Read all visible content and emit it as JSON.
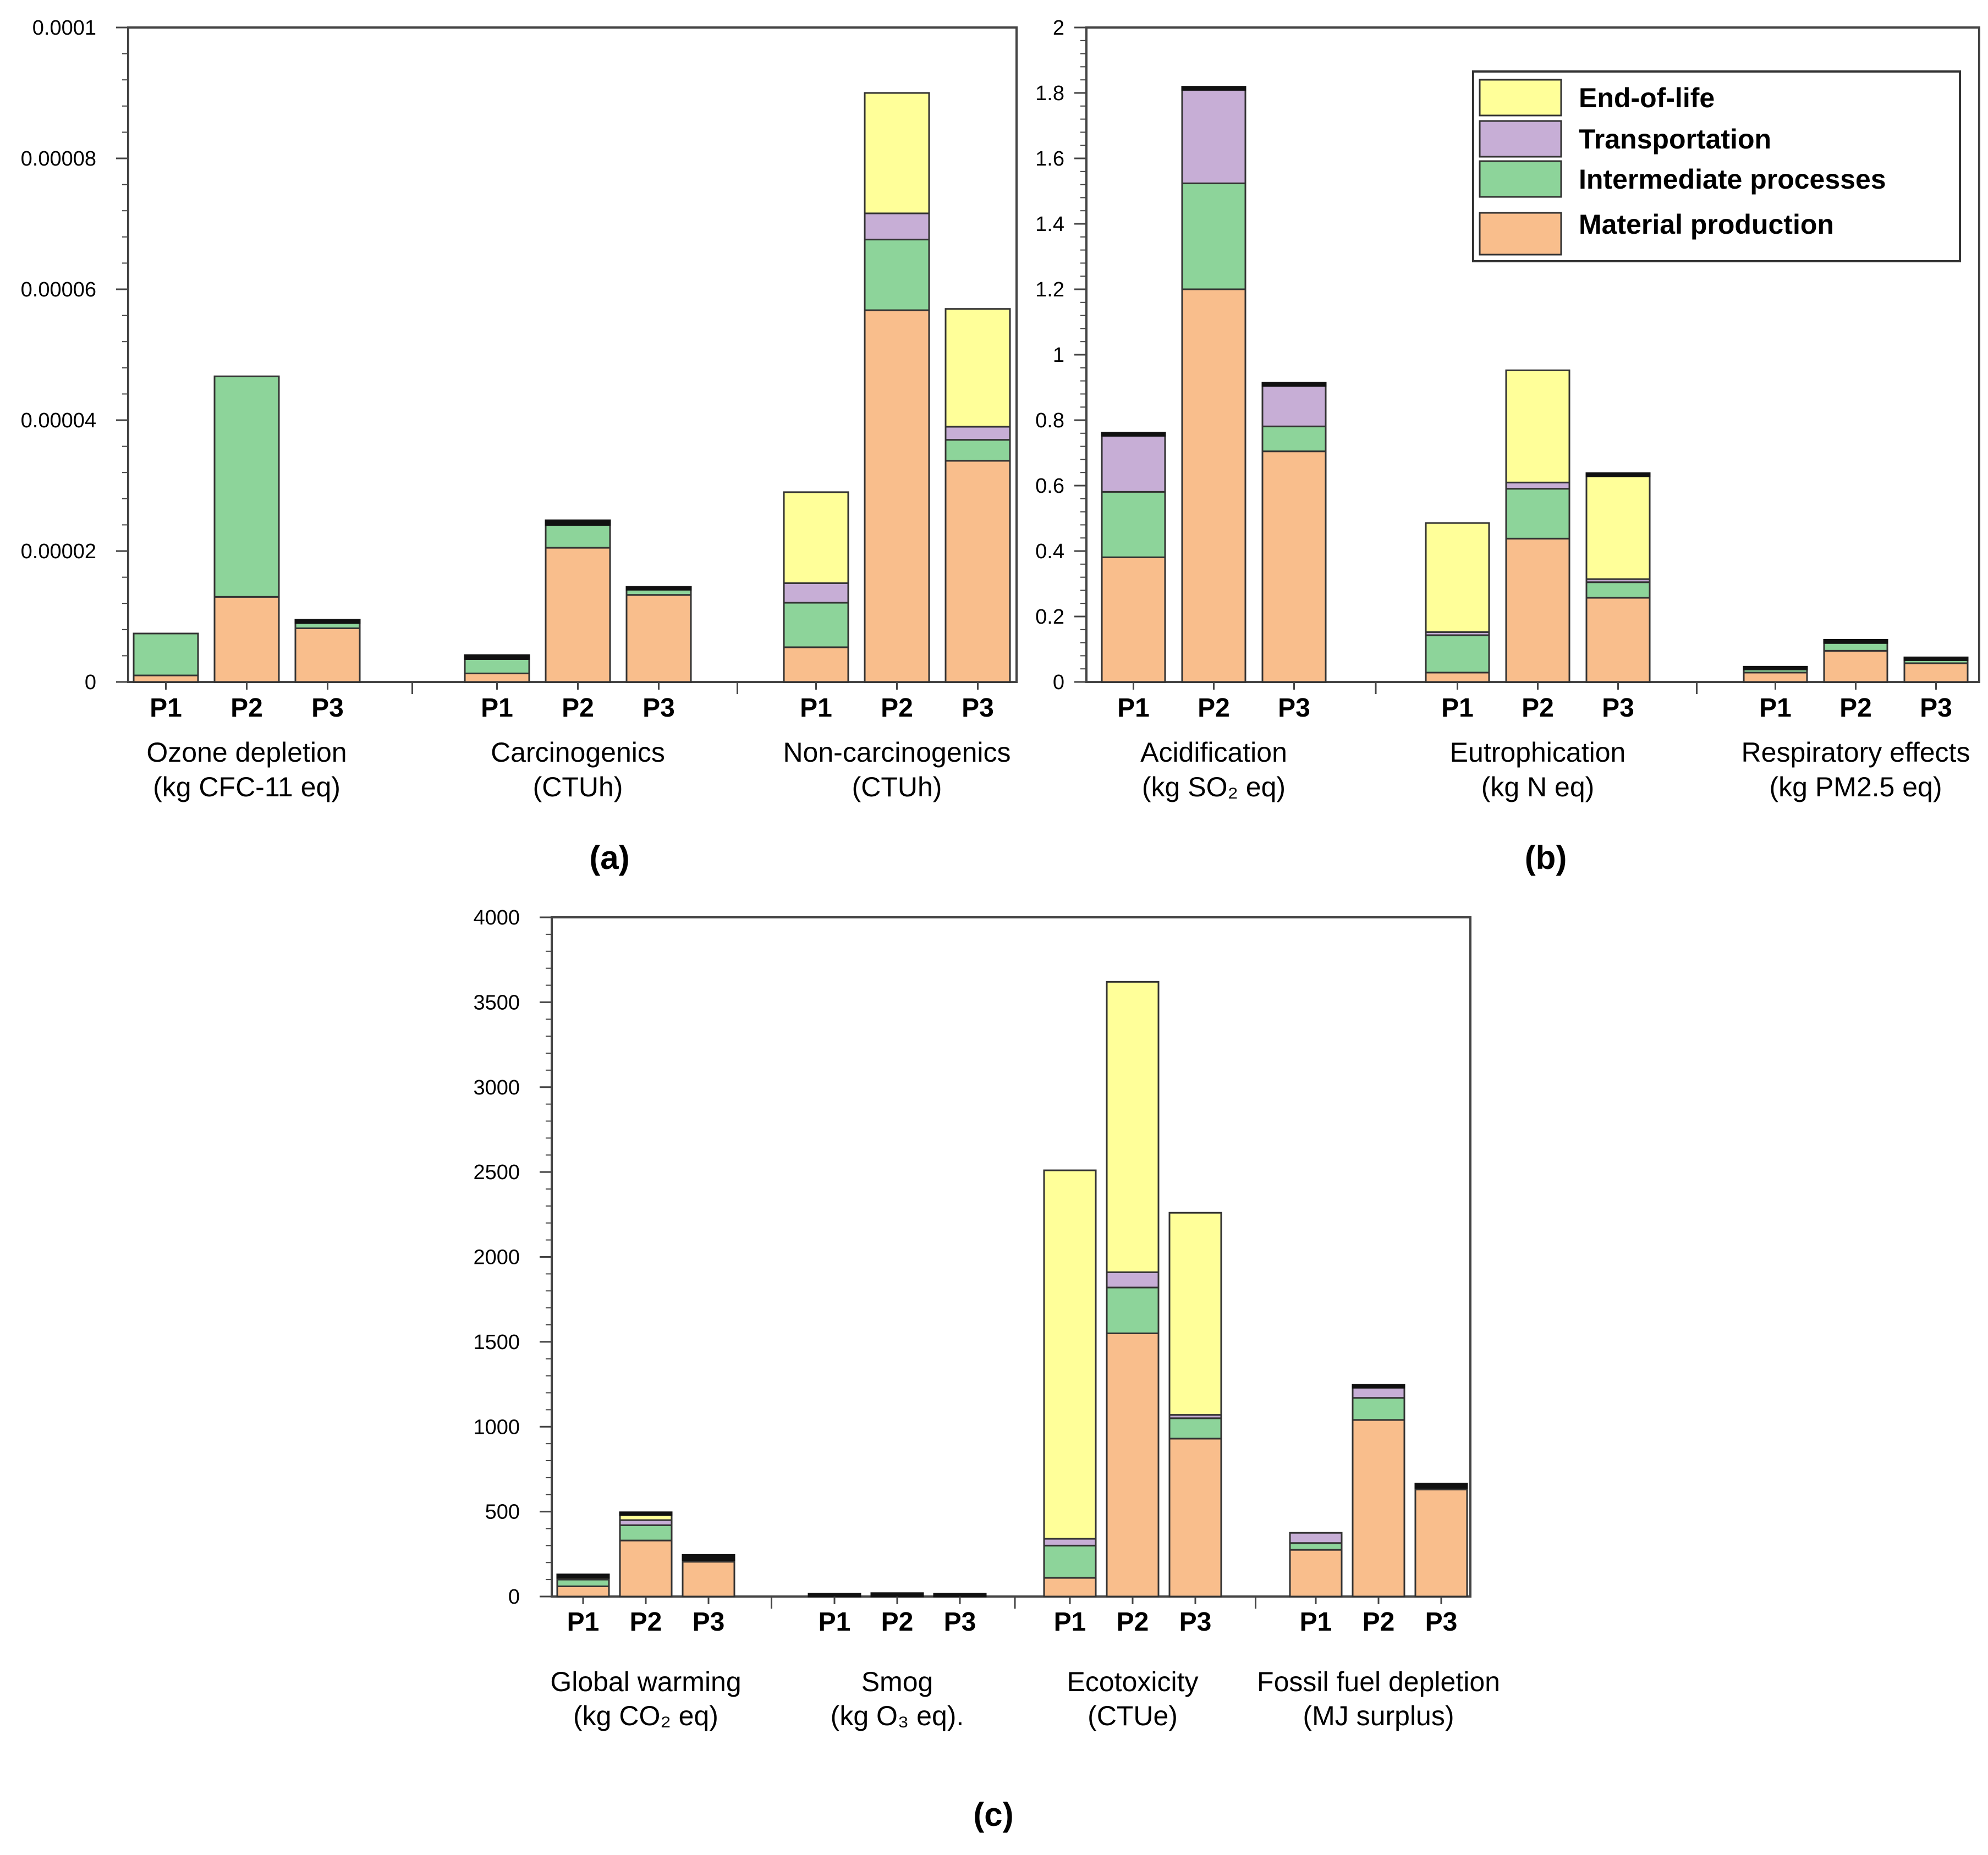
{
  "legend": {
    "items": [
      {
        "label": "End-of-life",
        "color": "#ffff99"
      },
      {
        "label": "Transportation",
        "color": "#c7aed6"
      },
      {
        "label": "Intermediate processes",
        "color": "#8dd49a"
      },
      {
        "label": "Material production",
        "color": "#f9be8c"
      }
    ]
  },
  "stage_keys": [
    "material_production",
    "intermediate_processes",
    "transportation",
    "end_of_life"
  ],
  "colors": {
    "material_production": "#f9be8c",
    "intermediate_processes": "#8dd49a",
    "transportation": "#c7aed6",
    "end_of_life": "#ffff99",
    "other": "#111111"
  },
  "chart_data": [
    {
      "panel": "(a)",
      "type": "bar",
      "stacked": true,
      "ylim": [
        0,
        0.0001
      ],
      "yticks": [
        "0",
        "0.00002",
        "0.00004",
        "0.00006",
        "0.00008",
        "0.0001"
      ],
      "categories": [
        "P1",
        "P2",
        "P3"
      ],
      "groups": [
        {
          "name": "Ozone depletion",
          "unit": "(kg CFC-11 eq)",
          "bars": [
            {
              "label": "P1",
              "material_production": 1e-06,
              "intermediate_processes": 6.4e-06,
              "transportation": 0,
              "end_of_life": 0,
              "other": 0
            },
            {
              "label": "P2",
              "material_production": 1.3e-05,
              "intermediate_processes": 3.37e-05,
              "transportation": 0,
              "end_of_life": 0,
              "other": 0
            },
            {
              "label": "P3",
              "material_production": 8.2e-06,
              "intermediate_processes": 8e-07,
              "transportation": 0,
              "end_of_life": 0,
              "other": 5e-07
            }
          ]
        },
        {
          "name": "Carcinogenics",
          "unit": "(CTUh)",
          "bars": [
            {
              "label": "P1",
              "material_production": 1.3e-06,
              "intermediate_processes": 2.2e-06,
              "transportation": 0,
              "end_of_life": 0,
              "other": 6e-07
            },
            {
              "label": "P2",
              "material_production": 2.05e-05,
              "intermediate_processes": 3.5e-06,
              "transportation": 0,
              "end_of_life": 0,
              "other": 7e-07
            },
            {
              "label": "P3",
              "material_production": 1.33e-05,
              "intermediate_processes": 8e-07,
              "transportation": 0,
              "end_of_life": 0,
              "other": 4e-07
            }
          ]
        },
        {
          "name": "Non-carcinogenics",
          "unit": "(CTUh)",
          "bars": [
            {
              "label": "P1",
              "material_production": 5.3e-06,
              "intermediate_processes": 6.8e-06,
              "transportation": 3e-06,
              "end_of_life": 1.39e-05,
              "other": 0
            },
            {
              "label": "P2",
              "material_production": 5.68e-05,
              "intermediate_processes": 1.08e-05,
              "transportation": 4e-06,
              "end_of_life": 1.84e-05,
              "other": 0
            },
            {
              "label": "P3",
              "material_production": 3.38e-05,
              "intermediate_processes": 3.2e-06,
              "transportation": 2e-06,
              "end_of_life": 1.8e-05,
              "other": 0
            }
          ]
        }
      ]
    },
    {
      "panel": "(b)",
      "type": "bar",
      "stacked": true,
      "ylim": [
        0,
        2.1
      ],
      "yticks": [
        "0",
        "0.2",
        "0.4",
        "0.6",
        "0.8",
        "1",
        "1.2",
        "1.4",
        "1.6",
        "1.8",
        "2"
      ],
      "categories": [
        "P1",
        "P2",
        "P3"
      ],
      "groups": [
        {
          "name": "Acidification",
          "unit": "(kg SO₂ eq)",
          "bars": [
            {
              "label": "P1",
              "material_production": 0.4,
              "intermediate_processes": 0.21,
              "transportation": 0.18,
              "end_of_life": 0,
              "other": 0.01
            },
            {
              "label": "P2",
              "material_production": 1.26,
              "intermediate_processes": 0.34,
              "transportation": 0.3,
              "end_of_life": 0,
              "other": 0.01
            },
            {
              "label": "P3",
              "material_production": 0.74,
              "intermediate_processes": 0.08,
              "transportation": 0.13,
              "end_of_life": 0,
              "other": 0.01
            }
          ]
        },
        {
          "name": "Eutrophication",
          "unit": "(kg N eq)",
          "bars": [
            {
              "label": "P1",
              "material_production": 0.03,
              "intermediate_processes": 0.12,
              "transportation": 0.01,
              "end_of_life": 0.35,
              "other": 0
            },
            {
              "label": "P2",
              "material_production": 0.46,
              "intermediate_processes": 0.16,
              "transportation": 0.02,
              "end_of_life": 0.36,
              "other": 0
            },
            {
              "label": "P3",
              "material_production": 0.27,
              "intermediate_processes": 0.05,
              "transportation": 0.01,
              "end_of_life": 0.33,
              "other": 0.01
            }
          ]
        },
        {
          "name": "Respiratory effects",
          "unit": "(kg PM2.5 eq)",
          "bars": [
            {
              "label": "P1",
              "material_production": 0.03,
              "intermediate_processes": 0.01,
              "transportation": 0,
              "end_of_life": 0,
              "other": 0.005
            },
            {
              "label": "P2",
              "material_production": 0.1,
              "intermediate_processes": 0.025,
              "transportation": 0,
              "end_of_life": 0,
              "other": 0.01
            },
            {
              "label": "P3",
              "material_production": 0.06,
              "intermediate_processes": 0.01,
              "transportation": 0,
              "end_of_life": 0,
              "other": 0.008
            }
          ]
        }
      ]
    },
    {
      "panel": "(c)",
      "type": "bar",
      "stacked": true,
      "ylim": [
        0,
        4000
      ],
      "yticks": [
        "0",
        "500",
        "1000",
        "1500",
        "2000",
        "2500",
        "3000",
        "3500",
        "4000"
      ],
      "categories": [
        "P1",
        "P2",
        "P3"
      ],
      "groups": [
        {
          "name": "Global warming",
          "unit": "(kg CO₂ eq)",
          "bars": [
            {
              "label": "P1",
              "material_production": 60,
              "intermediate_processes": 40,
              "transportation": 0,
              "end_of_life": 10,
              "other": 20
            },
            {
              "label": "P2",
              "material_production": 330,
              "intermediate_processes": 90,
              "transportation": 30,
              "end_of_life": 30,
              "other": 5
            },
            {
              "label": "P3",
              "material_production": 205,
              "intermediate_processes": 10,
              "transportation": 0,
              "end_of_life": 0,
              "other": 30
            }
          ]
        },
        {
          "name": "Smog",
          "unit": "(kg O₃ eq).",
          "bars": [
            {
              "label": "P1",
              "material_production": 0,
              "intermediate_processes": 0,
              "transportation": 0,
              "end_of_life": 0,
              "other": 10
            },
            {
              "label": "P2",
              "material_production": 0,
              "intermediate_processes": 0,
              "transportation": 0,
              "end_of_life": 0,
              "other": 20
            },
            {
              "label": "P3",
              "material_production": 0,
              "intermediate_processes": 0,
              "transportation": 0,
              "end_of_life": 0,
              "other": 12
            }
          ]
        },
        {
          "name": "Ecotoxicity",
          "unit": "(CTUe)",
          "bars": [
            {
              "label": "P1",
              "material_production": 110,
              "intermediate_processes": 190,
              "transportation": 40,
              "end_of_life": 2170,
              "other": 0
            },
            {
              "label": "P2",
              "material_production": 1550,
              "intermediate_processes": 270,
              "transportation": 90,
              "end_of_life": 1710,
              "other": 0
            },
            {
              "label": "P3",
              "material_production": 930,
              "intermediate_processes": 120,
              "transportation": 20,
              "end_of_life": 1190,
              "other": 0
            }
          ]
        },
        {
          "name": "Fossil fuel depletion",
          "unit": "(MJ surplus)",
          "bars": [
            {
              "label": "P1",
              "material_production": 275,
              "intermediate_processes": 40,
              "transportation": 60,
              "end_of_life": 0,
              "other": 0
            },
            {
              "label": "P2",
              "material_production": 1040,
              "intermediate_processes": 130,
              "transportation": 60,
              "end_of_life": 0,
              "other": 10
            },
            {
              "label": "P3",
              "material_production": 630,
              "intermediate_processes": 10,
              "transportation": 0,
              "end_of_life": 0,
              "other": 25
            }
          ]
        }
      ]
    }
  ]
}
